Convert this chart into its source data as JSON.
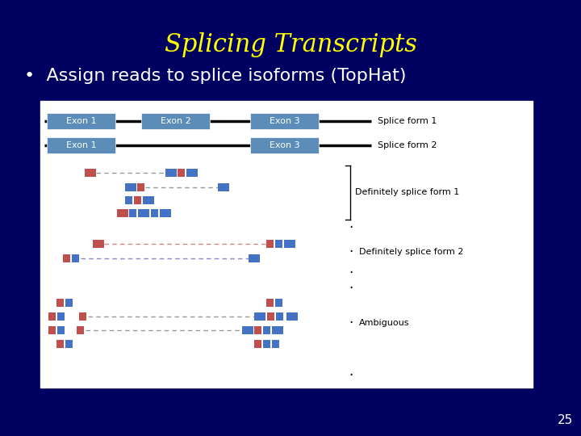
{
  "title": "Splicing Transcripts",
  "title_color": "#FFFF00",
  "title_fontsize": 22,
  "bullet_text": "Assign reads to splice isoforms (TopHat)",
  "bullet_color": "#FFFFFF",
  "bullet_fontsize": 16,
  "bg_color": "#000060",
  "slide_number": "25",
  "slide_number_color": "#FFFFFF",
  "panel_bg": "#FFFFFF",
  "exon_box_color": "#5B8DB8",
  "exon_text_color": "#FFFFFF",
  "red_block": "#C0504D",
  "blue_block": "#4472C4",
  "splice_form_1_label": "Splice form 1",
  "splice_form_2_label": "Splice form 2",
  "def_sf1_label": "Definitely splice form 1",
  "def_sf2_label": "Definitely splice form 2",
  "ambig_label": "Ambiguous"
}
